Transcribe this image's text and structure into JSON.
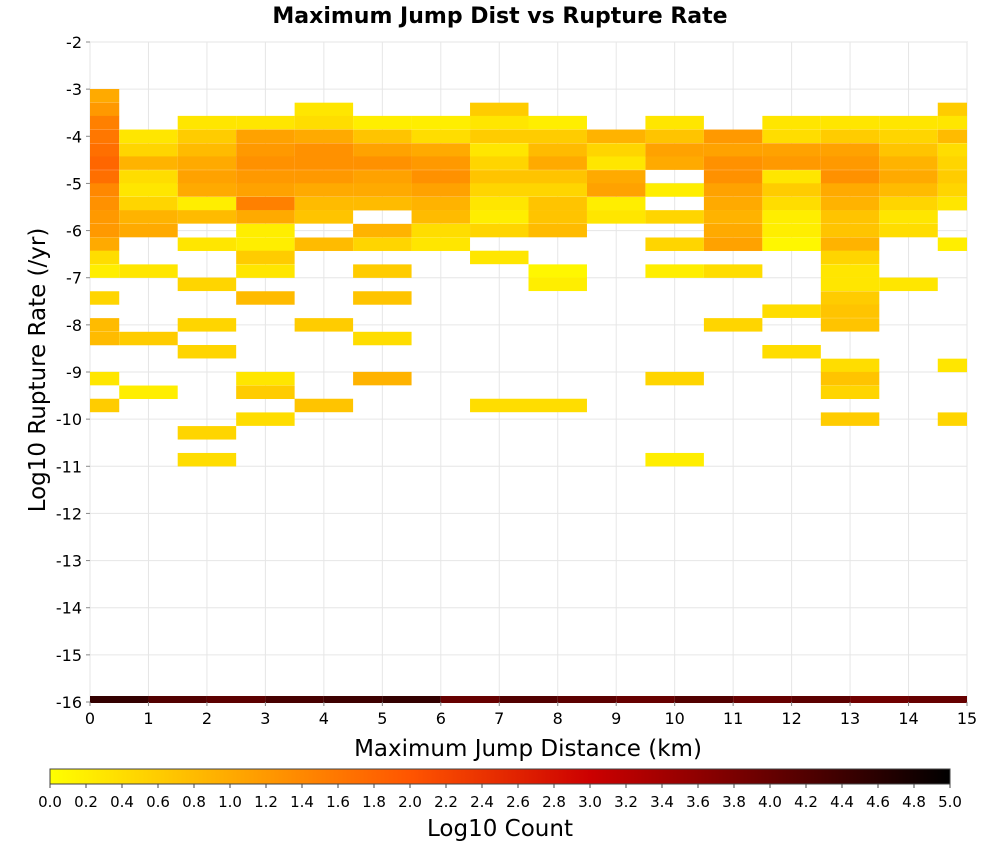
{
  "chart_data": {
    "type": "heatmap",
    "title": "Maximum Jump Dist vs Rupture Rate",
    "xlabel": "Maximum Jump Distance (km)",
    "ylabel": "Log10 Rupture Rate (/yr)",
    "xlim": [
      0,
      15
    ],
    "ylim": [
      -16,
      -2
    ],
    "x_ticks": [
      "0",
      "1",
      "2",
      "3",
      "4",
      "5",
      "6",
      "7",
      "8",
      "9",
      "10",
      "11",
      "12",
      "13",
      "14",
      "15"
    ],
    "y_ticks": [
      "-2",
      "-3",
      "-4",
      "-5",
      "-6",
      "-7",
      "-8",
      "-9",
      "-10",
      "-11",
      "-12",
      "-13",
      "-14",
      "-15",
      "-16"
    ],
    "bin_width_x": 1,
    "bin_height_y": 0.2857,
    "colorbar": {
      "label": "Log10 Count",
      "range": [
        0,
        5
      ],
      "ticks": [
        "0.0",
        "0.2",
        "0.4",
        "0.6",
        "0.8",
        "1.0",
        "1.2",
        "1.4",
        "1.6",
        "1.8",
        "2.0",
        "2.2",
        "2.4",
        "2.6",
        "2.8",
        "3.0",
        "3.2",
        "3.4",
        "3.6",
        "3.8",
        "4.0",
        "4.2",
        "4.4",
        "4.6",
        "4.8",
        "5.0"
      ],
      "colors": [
        "#ffff00",
        "#ffaa00",
        "#ff5500",
        "#cc0000",
        "#660000",
        "#000000"
      ]
    },
    "grid": true,
    "bottom_row": {
      "y": -16,
      "values": [
        4.5,
        4.2,
        4.1,
        4.3,
        4.4,
        4.5,
        4.0,
        4.2,
        4.1,
        4.0,
        4.2,
        4.0,
        4.1,
        3.9,
        4.0
      ]
    },
    "cells": [
      [
        0,
        -3.14,
        1.0
      ],
      [
        0,
        -3.43,
        1.2
      ],
      [
        0,
        -3.71,
        1.5
      ],
      [
        0,
        -4.0,
        1.6
      ],
      [
        0,
        -4.29,
        1.7
      ],
      [
        0,
        -4.57,
        1.8
      ],
      [
        0,
        -4.86,
        1.7
      ],
      [
        0,
        -5.14,
        1.4
      ],
      [
        0,
        -5.43,
        1.3
      ],
      [
        0,
        -5.71,
        1.2
      ],
      [
        0,
        -6.0,
        1.2
      ],
      [
        0,
        -6.29,
        1.0
      ],
      [
        0,
        -6.57,
        0.4
      ],
      [
        0,
        -6.86,
        0.2
      ],
      [
        0,
        -7.43,
        0.5
      ],
      [
        0,
        -8.0,
        0.8
      ],
      [
        0,
        -8.29,
        0.8
      ],
      [
        0,
        -9.14,
        0.3
      ],
      [
        0,
        -9.71,
        0.6
      ],
      [
        1,
        -4.0,
        0.3
      ],
      [
        1,
        -4.29,
        0.5
      ],
      [
        1,
        -4.57,
        0.9
      ],
      [
        1,
        -4.86,
        0.4
      ],
      [
        1,
        -5.14,
        0.3
      ],
      [
        1,
        -5.43,
        0.5
      ],
      [
        1,
        -5.71,
        0.9
      ],
      [
        1,
        -6.0,
        1.0
      ],
      [
        1,
        -6.86,
        0.3
      ],
      [
        1,
        -8.29,
        0.6
      ],
      [
        1,
        -9.43,
        0.2
      ],
      [
        2,
        -3.71,
        0.3
      ],
      [
        2,
        -4.0,
        0.6
      ],
      [
        2,
        -4.29,
        0.8
      ],
      [
        2,
        -4.57,
        1.0
      ],
      [
        2,
        -4.86,
        1.1
      ],
      [
        2,
        -5.14,
        1.0
      ],
      [
        2,
        -5.43,
        0.2
      ],
      [
        2,
        -5.71,
        0.8
      ],
      [
        2,
        -6.29,
        0.3
      ],
      [
        2,
        -7.14,
        0.5
      ],
      [
        2,
        -8.0,
        0.5
      ],
      [
        2,
        -8.57,
        0.5
      ],
      [
        2,
        -10.29,
        0.5
      ],
      [
        2,
        -10.86,
        0.4
      ],
      [
        3,
        -3.71,
        0.3
      ],
      [
        3,
        -4.0,
        1.1
      ],
      [
        3,
        -4.29,
        1.2
      ],
      [
        3,
        -4.57,
        1.3
      ],
      [
        3,
        -4.86,
        1.2
      ],
      [
        3,
        -5.14,
        1.1
      ],
      [
        3,
        -5.43,
        1.5
      ],
      [
        3,
        -5.71,
        1.0
      ],
      [
        3,
        -6.0,
        0.2
      ],
      [
        3,
        -6.29,
        0.2
      ],
      [
        3,
        -6.57,
        0.6
      ],
      [
        3,
        -6.86,
        0.3
      ],
      [
        3,
        -7.43,
        0.8
      ],
      [
        3,
        -9.14,
        0.3
      ],
      [
        3,
        -9.43,
        0.6
      ],
      [
        3,
        -10.0,
        0.4
      ],
      [
        4,
        -3.43,
        0.3
      ],
      [
        4,
        -3.71,
        0.4
      ],
      [
        4,
        -4.0,
        1.0
      ],
      [
        4,
        -4.29,
        1.3
      ],
      [
        4,
        -4.57,
        1.3
      ],
      [
        4,
        -4.86,
        1.2
      ],
      [
        4,
        -5.14,
        1.0
      ],
      [
        4,
        -5.43,
        0.8
      ],
      [
        4,
        -5.71,
        0.7
      ],
      [
        4,
        -6.29,
        0.8
      ],
      [
        4,
        -8.0,
        0.6
      ],
      [
        4,
        -9.71,
        0.7
      ],
      [
        5,
        -3.71,
        0.2
      ],
      [
        5,
        -4.0,
        0.7
      ],
      [
        5,
        -4.29,
        1.1
      ],
      [
        5,
        -4.57,
        1.3
      ],
      [
        5,
        -4.86,
        1.1
      ],
      [
        5,
        -5.14,
        1.0
      ],
      [
        5,
        -5.43,
        0.8
      ],
      [
        5,
        -6.0,
        0.9
      ],
      [
        5,
        -6.29,
        0.5
      ],
      [
        5,
        -6.86,
        0.6
      ],
      [
        5,
        -7.43,
        0.7
      ],
      [
        5,
        -8.29,
        0.4
      ],
      [
        5,
        -9.14,
        0.9
      ],
      [
        6,
        -3.71,
        0.2
      ],
      [
        6,
        -4.0,
        0.4
      ],
      [
        6,
        -4.29,
        1.0
      ],
      [
        6,
        -4.57,
        1.2
      ],
      [
        6,
        -4.86,
        1.3
      ],
      [
        6,
        -5.14,
        1.1
      ],
      [
        6,
        -5.43,
        0.9
      ],
      [
        6,
        -5.71,
        0.8
      ],
      [
        6,
        -6.0,
        0.4
      ],
      [
        6,
        -6.29,
        0.3
      ],
      [
        7,
        -3.43,
        0.6
      ],
      [
        7,
        -3.71,
        0.3
      ],
      [
        7,
        -4.0,
        0.6
      ],
      [
        7,
        -4.29,
        0.3
      ],
      [
        7,
        -4.57,
        0.5
      ],
      [
        7,
        -4.86,
        0.7
      ],
      [
        7,
        -5.14,
        0.5
      ],
      [
        7,
        -5.43,
        0.3
      ],
      [
        7,
        -5.71,
        0.2
      ],
      [
        7,
        -6.0,
        0.5
      ],
      [
        7,
        -6.57,
        0.3
      ],
      [
        7,
        -9.71,
        0.4
      ],
      [
        8,
        -3.71,
        0.2
      ],
      [
        8,
        -4.0,
        0.6
      ],
      [
        8,
        -4.29,
        0.8
      ],
      [
        8,
        -4.57,
        1.0
      ],
      [
        8,
        -4.86,
        0.7
      ],
      [
        8,
        -5.14,
        0.5
      ],
      [
        8,
        -5.43,
        0.7
      ],
      [
        8,
        -5.71,
        0.7
      ],
      [
        8,
        -6.0,
        0.8
      ],
      [
        8,
        -6.86,
        0.1
      ],
      [
        8,
        -7.14,
        0.2
      ],
      [
        8,
        -9.71,
        0.4
      ],
      [
        9,
        -4.0,
        0.9
      ],
      [
        9,
        -4.29,
        0.5
      ],
      [
        9,
        -4.57,
        0.3
      ],
      [
        9,
        -4.86,
        1.0
      ],
      [
        9,
        -5.14,
        1.1
      ],
      [
        9,
        -5.43,
        0.2
      ],
      [
        9,
        -5.71,
        0.3
      ],
      [
        10,
        -3.71,
        0.3
      ],
      [
        10,
        -4.0,
        0.7
      ],
      [
        10,
        -4.29,
        1.1
      ],
      [
        10,
        -4.57,
        1.0
      ],
      [
        10,
        -5.14,
        0.2
      ],
      [
        10,
        -5.71,
        0.5
      ],
      [
        10,
        -6.29,
        0.5
      ],
      [
        10,
        -6.86,
        0.2
      ],
      [
        10,
        -9.14,
        0.5
      ],
      [
        10,
        -10.86,
        0.2
      ],
      [
        11,
        -4.0,
        1.2
      ],
      [
        11,
        -4.29,
        1.1
      ],
      [
        11,
        -4.57,
        1.3
      ],
      [
        11,
        -4.86,
        1.3
      ],
      [
        11,
        -5.14,
        1.1
      ],
      [
        11,
        -5.43,
        1.0
      ],
      [
        11,
        -5.71,
        0.9
      ],
      [
        11,
        -6.0,
        1.0
      ],
      [
        11,
        -6.29,
        1.1
      ],
      [
        11,
        -6.86,
        0.4
      ],
      [
        11,
        -8.0,
        0.5
      ],
      [
        12,
        -3.71,
        0.3
      ],
      [
        12,
        -4.0,
        0.4
      ],
      [
        12,
        -4.29,
        1.1
      ],
      [
        12,
        -4.57,
        1.2
      ],
      [
        12,
        -4.86,
        0.3
      ],
      [
        12,
        -5.14,
        0.6
      ],
      [
        12,
        -5.43,
        0.4
      ],
      [
        12,
        -5.71,
        0.2
      ],
      [
        12,
        -6.0,
        0.2
      ],
      [
        12,
        -6.29,
        0.1
      ],
      [
        12,
        -7.71,
        0.4
      ],
      [
        12,
        -8.57,
        0.4
      ],
      [
        13,
        -3.71,
        0.3
      ],
      [
        13,
        -4.0,
        0.6
      ],
      [
        13,
        -4.29,
        1.1
      ],
      [
        13,
        -4.57,
        1.2
      ],
      [
        13,
        -4.86,
        1.3
      ],
      [
        13,
        -5.14,
        1.0
      ],
      [
        13,
        -5.43,
        0.9
      ],
      [
        13,
        -5.71,
        0.7
      ],
      [
        13,
        -6.0,
        0.7
      ],
      [
        13,
        -6.29,
        0.9
      ],
      [
        13,
        -6.57,
        0.5
      ],
      [
        13,
        -6.86,
        0.3
      ],
      [
        13,
        -7.14,
        0.3
      ],
      [
        13,
        -7.43,
        0.6
      ],
      [
        13,
        -7.71,
        0.7
      ],
      [
        13,
        -8.0,
        0.7
      ],
      [
        13,
        -8.86,
        0.4
      ],
      [
        13,
        -9.14,
        0.7
      ],
      [
        13,
        -9.43,
        0.5
      ],
      [
        13,
        -10.0,
        0.6
      ],
      [
        14,
        -3.71,
        0.3
      ],
      [
        14,
        -4.0,
        0.5
      ],
      [
        14,
        -4.29,
        0.7
      ],
      [
        14,
        -4.57,
        0.9
      ],
      [
        14,
        -4.86,
        1.0
      ],
      [
        14,
        -5.14,
        0.8
      ],
      [
        14,
        -5.43,
        0.5
      ],
      [
        14,
        -5.71,
        0.3
      ],
      [
        14,
        -6.0,
        0.4
      ],
      [
        14,
        -7.14,
        0.3
      ],
      [
        15,
        -3.43,
        0.6
      ],
      [
        15,
        -3.71,
        0.3
      ],
      [
        15,
        -4.0,
        0.8
      ],
      [
        15,
        -4.29,
        0.4
      ],
      [
        15,
        -4.57,
        0.5
      ],
      [
        15,
        -4.86,
        0.6
      ],
      [
        15,
        -5.14,
        0.5
      ],
      [
        15,
        -5.43,
        0.3
      ],
      [
        15,
        -6.29,
        0.2
      ],
      [
        15,
        -8.86,
        0.3
      ],
      [
        15,
        -10.0,
        0.5
      ]
    ]
  }
}
